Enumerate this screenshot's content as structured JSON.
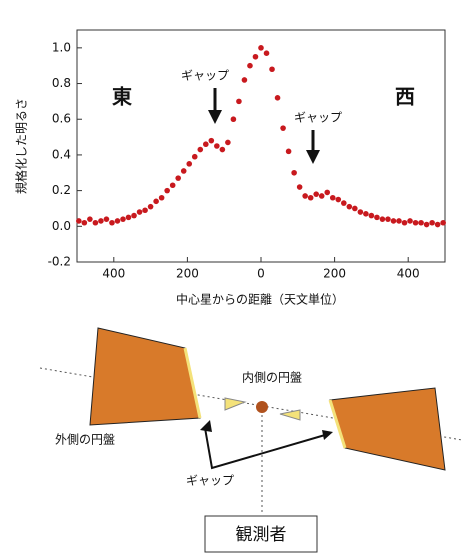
{
  "chart_data": {
    "type": "scatter",
    "y_label": "規格化した明るさ",
    "x_label": "中心星からの距離（天文単位）",
    "annotations": {
      "east": "東",
      "west": "西",
      "gap_left": "ギャップ",
      "gap_right": "ギャップ"
    },
    "color": "#c8191e",
    "x": [
      -495,
      -480,
      -465,
      -450,
      -435,
      -420,
      -405,
      -390,
      -375,
      -360,
      -345,
      -330,
      -315,
      -300,
      -285,
      -270,
      -255,
      -240,
      -225,
      -210,
      -195,
      -180,
      -165,
      -150,
      -135,
      -120,
      -105,
      -90,
      -75,
      -60,
      -45,
      -30,
      -15,
      0,
      15,
      30,
      45,
      60,
      75,
      90,
      105,
      120,
      135,
      150,
      165,
      180,
      195,
      210,
      225,
      240,
      255,
      270,
      285,
      300,
      315,
      330,
      345,
      360,
      375,
      390,
      405,
      420,
      435,
      450,
      465,
      480,
      495
    ],
    "values": [
      0.03,
      0.02,
      0.04,
      0.02,
      0.03,
      0.04,
      0.02,
      0.03,
      0.04,
      0.05,
      0.06,
      0.08,
      0.09,
      0.11,
      0.14,
      0.16,
      0.2,
      0.23,
      0.27,
      0.31,
      0.35,
      0.39,
      0.43,
      0.46,
      0.48,
      0.45,
      0.43,
      0.47,
      0.6,
      0.7,
      0.82,
      0.9,
      0.95,
      1.0,
      0.97,
      0.88,
      0.72,
      0.55,
      0.42,
      0.3,
      0.22,
      0.17,
      0.16,
      0.18,
      0.17,
      0.19,
      0.16,
      0.15,
      0.13,
      0.11,
      0.1,
      0.08,
      0.07,
      0.06,
      0.05,
      0.04,
      0.04,
      0.03,
      0.03,
      0.02,
      0.03,
      0.02,
      0.02,
      0.01,
      0.02,
      0.01,
      0.02
    ],
    "xlim": [
      -500,
      500
    ],
    "ylim": [
      -0.2,
      1.1
    ],
    "xticks": [
      {
        "value": -400,
        "label": "400"
      },
      {
        "value": -200,
        "label": "200"
      },
      0,
      200,
      400
    ],
    "yticks": [
      -0.2,
      {
        "value": 0,
        "label": "0.0"
      },
      0.2,
      0.4,
      0.6,
      0.8,
      {
        "value": 1,
        "label": "1.0"
      }
    ]
  },
  "diagram": {
    "inner_disk": "内側の円盤",
    "outer_disk": "外側の円盤",
    "gap": "ギャップ",
    "observer": "観測者"
  }
}
